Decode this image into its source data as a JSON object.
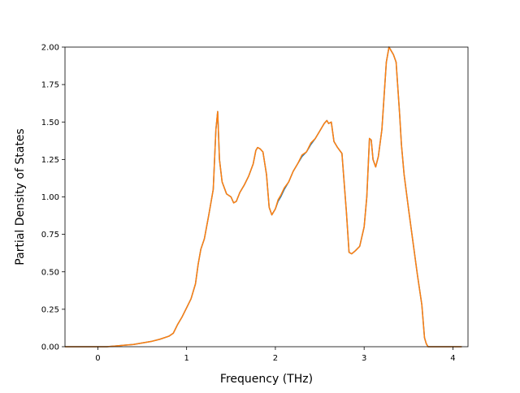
{
  "chart_data": {
    "type": "line",
    "title": "",
    "xlabel": "Frequency (THz)",
    "ylabel": "Partial Density of States",
    "xlim": [
      -0.37,
      4.17
    ],
    "ylim": [
      0,
      2.0
    ],
    "grid": false,
    "legend": "none",
    "x_ticks": [
      0,
      1,
      2,
      3,
      4
    ],
    "x_tick_labels": [
      "0",
      "1",
      "2",
      "3",
      "4"
    ],
    "y_ticks": [
      0,
      0.25,
      0.5,
      0.75,
      1.0,
      1.25,
      1.5,
      1.75,
      2.0
    ],
    "y_tick_labels": [
      "0.00",
      "0.25",
      "0.50",
      "0.75",
      "1.00",
      "1.25",
      "1.50",
      "1.75",
      "2.00"
    ],
    "colors": {
      "series_0": "#1f77b4",
      "series_1": "#ff7f0e",
      "axes": "#000000",
      "background": "#ffffff"
    },
    "series": [
      {
        "x": [
          -0.37,
          0.0,
          0.1,
          0.2,
          0.3,
          0.4,
          0.5,
          0.6,
          0.7,
          0.8,
          0.85,
          0.9,
          0.95,
          1.0,
          1.05,
          1.1,
          1.13,
          1.16,
          1.2,
          1.25,
          1.3,
          1.33,
          1.35,
          1.37,
          1.4,
          1.45,
          1.5,
          1.53,
          1.56,
          1.6,
          1.65,
          1.7,
          1.75,
          1.78,
          1.8,
          1.83,
          1.86,
          1.9,
          1.93,
          1.96,
          2.0,
          2.03,
          2.06,
          2.1,
          2.15,
          2.2,
          2.25,
          2.3,
          2.35,
          2.4,
          2.45,
          2.5,
          2.55,
          2.58,
          2.6,
          2.63,
          2.66,
          2.7,
          2.75,
          2.8,
          2.83,
          2.86,
          2.9,
          2.95,
          3.0,
          3.03,
          3.06,
          3.08,
          3.1,
          3.13,
          3.16,
          3.2,
          3.25,
          3.28,
          3.3,
          3.33,
          3.36,
          3.4,
          3.42,
          3.45,
          3.5,
          3.55,
          3.6,
          3.65,
          3.68,
          3.7,
          3.72,
          3.75,
          3.8,
          4.1
        ],
        "y": [
          0.0,
          0.0,
          0.0,
          0.005,
          0.01,
          0.015,
          0.025,
          0.035,
          0.05,
          0.07,
          0.09,
          0.15,
          0.2,
          0.26,
          0.32,
          0.42,
          0.55,
          0.65,
          0.72,
          0.88,
          1.05,
          1.45,
          1.57,
          1.25,
          1.1,
          1.02,
          1.0,
          0.96,
          0.97,
          1.03,
          1.08,
          1.14,
          1.22,
          1.31,
          1.33,
          1.32,
          1.3,
          1.15,
          0.93,
          0.88,
          0.92,
          0.97,
          1.0,
          1.05,
          1.1,
          1.17,
          1.22,
          1.27,
          1.3,
          1.35,
          1.39,
          1.44,
          1.49,
          1.51,
          1.49,
          1.5,
          1.37,
          1.33,
          1.29,
          0.9,
          0.63,
          0.62,
          0.64,
          0.67,
          0.8,
          1.0,
          1.39,
          1.38,
          1.25,
          1.2,
          1.27,
          1.45,
          1.9,
          2.0,
          1.98,
          1.95,
          1.9,
          1.55,
          1.35,
          1.15,
          0.92,
          0.7,
          0.48,
          0.28,
          0.06,
          0.02,
          0.0,
          0.0,
          0.0,
          0.0
        ]
      },
      {
        "x": [
          -0.37,
          0.0,
          0.1,
          0.2,
          0.3,
          0.4,
          0.5,
          0.6,
          0.7,
          0.8,
          0.85,
          0.9,
          0.95,
          1.0,
          1.05,
          1.1,
          1.13,
          1.16,
          1.2,
          1.25,
          1.3,
          1.33,
          1.35,
          1.37,
          1.4,
          1.45,
          1.5,
          1.53,
          1.56,
          1.6,
          1.65,
          1.7,
          1.75,
          1.78,
          1.8,
          1.83,
          1.86,
          1.9,
          1.93,
          1.96,
          2.0,
          2.03,
          2.06,
          2.1,
          2.15,
          2.2,
          2.25,
          2.3,
          2.35,
          2.4,
          2.45,
          2.5,
          2.55,
          2.58,
          2.6,
          2.63,
          2.66,
          2.7,
          2.75,
          2.8,
          2.83,
          2.86,
          2.9,
          2.95,
          3.0,
          3.03,
          3.06,
          3.08,
          3.1,
          3.13,
          3.16,
          3.2,
          3.25,
          3.28,
          3.3,
          3.33,
          3.36,
          3.4,
          3.42,
          3.45,
          3.5,
          3.55,
          3.6,
          3.65,
          3.68,
          3.7,
          3.72,
          3.75,
          3.8,
          4.1
        ],
        "y": [
          0.0,
          0.0,
          0.0,
          0.005,
          0.01,
          0.015,
          0.025,
          0.035,
          0.05,
          0.07,
          0.09,
          0.15,
          0.2,
          0.26,
          0.32,
          0.42,
          0.55,
          0.65,
          0.72,
          0.88,
          1.05,
          1.45,
          1.57,
          1.25,
          1.1,
          1.02,
          1.0,
          0.96,
          0.97,
          1.03,
          1.08,
          1.14,
          1.22,
          1.31,
          1.33,
          1.32,
          1.3,
          1.15,
          0.93,
          0.88,
          0.92,
          0.98,
          1.01,
          1.06,
          1.1,
          1.17,
          1.22,
          1.28,
          1.3,
          1.36,
          1.39,
          1.44,
          1.49,
          1.51,
          1.49,
          1.5,
          1.37,
          1.33,
          1.29,
          0.9,
          0.63,
          0.62,
          0.64,
          0.67,
          0.8,
          1.0,
          1.39,
          1.38,
          1.25,
          1.2,
          1.27,
          1.45,
          1.9,
          2.0,
          1.98,
          1.95,
          1.9,
          1.55,
          1.35,
          1.15,
          0.92,
          0.7,
          0.48,
          0.28,
          0.06,
          0.02,
          0.0,
          0.0,
          0.0,
          0.0
        ]
      }
    ]
  }
}
